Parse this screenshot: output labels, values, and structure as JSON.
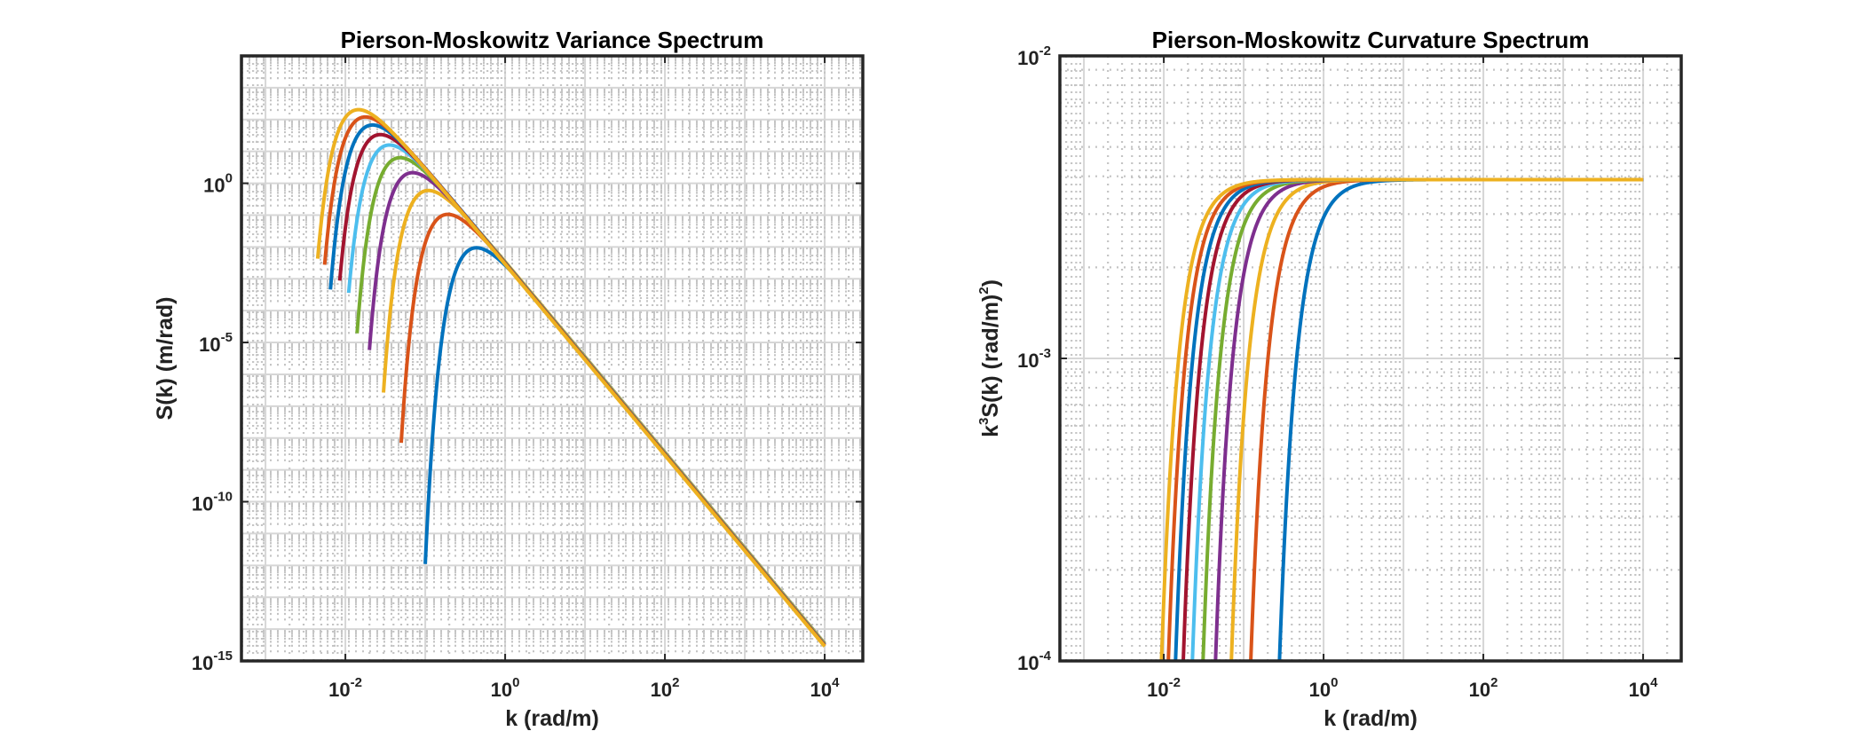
{
  "chart_data": [
    {
      "type": "line",
      "title": "Pierson-Moskowitz Variance Spectrum",
      "xlabel": "k (rad/m)",
      "ylabel": "S(k) (m/rad)",
      "xscale": "log",
      "yscale": "log",
      "xlim": [
        0.0005,
        30000
      ],
      "ylim": [
        1e-15,
        10000
      ],
      "xtick_labels": [
        {
          "base": "10",
          "exp": "-2",
          "value": 0.01
        },
        {
          "base": "10",
          "exp": "0",
          "value": 1
        },
        {
          "base": "10",
          "exp": "2",
          "value": 100
        },
        {
          "base": "10",
          "exp": "4",
          "value": 10000
        }
      ],
      "ytick_labels": [
        {
          "base": "10",
          "exp": "0",
          "value": 1
        },
        {
          "base": "10",
          "exp": "-5",
          "value": 1e-05
        },
        {
          "base": "10",
          "exp": "-10",
          "value": 1e-10
        },
        {
          "base": "10",
          "exp": "-15",
          "value": 1e-15
        }
      ],
      "grid": true,
      "legend": "none",
      "series": [
        {
          "color": "#0072BD",
          "k_range": [
            0.1,
            10000
          ],
          "k_peak": 0.48,
          "value_at_peak": 0.0092
        },
        {
          "color": "#D95319",
          "k_range": [
            0.05,
            10000
          ],
          "k_peak": 0.21,
          "value_at_peak": 0.103
        },
        {
          "color": "#EDB120",
          "k_range": [
            0.03,
            10000
          ],
          "k_peak": 0.12,
          "value_at_peak": 0.58
        },
        {
          "color": "#7E2F8E",
          "k_range": [
            0.02,
            10000
          ],
          "k_peak": 0.076,
          "value_at_peak": 2.1
        },
        {
          "color": "#77AC30",
          "k_range": [
            0.014,
            10000
          ],
          "k_peak": 0.053,
          "value_at_peak": 6.2
        },
        {
          "color": "#4DBEEE",
          "k_range": [
            0.011,
            10000
          ],
          "k_peak": 0.039,
          "value_at_peak": 15.5
        },
        {
          "color": "#A2142F",
          "k_range": [
            0.0085,
            10000
          ],
          "k_peak": 0.03,
          "value_at_peak": 33
        },
        {
          "color": "#0072BD",
          "k_range": [
            0.0065,
            10000
          ],
          "k_peak": 0.024,
          "value_at_peak": 66
        },
        {
          "color": "#D95319",
          "k_range": [
            0.0055,
            10000
          ],
          "k_peak": 0.0195,
          "value_at_peak": 118
        },
        {
          "color": "#EDB120",
          "k_range": [
            0.0045,
            10000
          ],
          "k_peak": 0.016,
          "value_at_peak": 200
        }
      ]
    },
    {
      "type": "line",
      "title": "Pierson-Moskowitz Curvature Spectrum",
      "xlabel": "k (rad/m)",
      "ylabel": {
        "pre": "k",
        "sup1": "3",
        "mid": "S(k) (rad/m)",
        "sup2": "2",
        "post": ")"
      },
      "xscale": "log",
      "yscale": "log",
      "xlim": [
        0.0005,
        30000
      ],
      "ylim": [
        0.0001,
        0.01
      ],
      "xtick_labels": [
        {
          "base": "10",
          "exp": "-2",
          "value": 0.01
        },
        {
          "base": "10",
          "exp": "0",
          "value": 1
        },
        {
          "base": "10",
          "exp": "2",
          "value": 100
        },
        {
          "base": "10",
          "exp": "4",
          "value": 10000
        }
      ],
      "ytick_labels": [
        {
          "base": "10",
          "exp": "-2",
          "value": 0.01
        },
        {
          "base": "10",
          "exp": "-3",
          "value": 0.001
        },
        {
          "base": "10",
          "exp": "-4",
          "value": 0.0001
        }
      ],
      "grid": true,
      "legend": "none",
      "saturation_level": 0.0039,
      "series": [
        {
          "color": "#0072BD",
          "k_range": [
            0.1,
            10000
          ],
          "k_peak": 0.48
        },
        {
          "color": "#D95319",
          "k_range": [
            0.05,
            10000
          ],
          "k_peak": 0.21
        },
        {
          "color": "#EDB120",
          "k_range": [
            0.03,
            10000
          ],
          "k_peak": 0.12
        },
        {
          "color": "#7E2F8E",
          "k_range": [
            0.02,
            10000
          ],
          "k_peak": 0.076
        },
        {
          "color": "#77AC30",
          "k_range": [
            0.014,
            10000
          ],
          "k_peak": 0.053
        },
        {
          "color": "#4DBEEE",
          "k_range": [
            0.011,
            10000
          ],
          "k_peak": 0.039
        },
        {
          "color": "#A2142F",
          "k_range": [
            0.0085,
            10000
          ],
          "k_peak": 0.03
        },
        {
          "color": "#0072BD",
          "k_range": [
            0.0065,
            10000
          ],
          "k_peak": 0.024
        },
        {
          "color": "#D95319",
          "k_range": [
            0.0055,
            10000
          ],
          "k_peak": 0.0195
        },
        {
          "color": "#EDB120",
          "k_range": [
            0.0045,
            10000
          ],
          "k_peak": 0.016
        }
      ]
    }
  ]
}
